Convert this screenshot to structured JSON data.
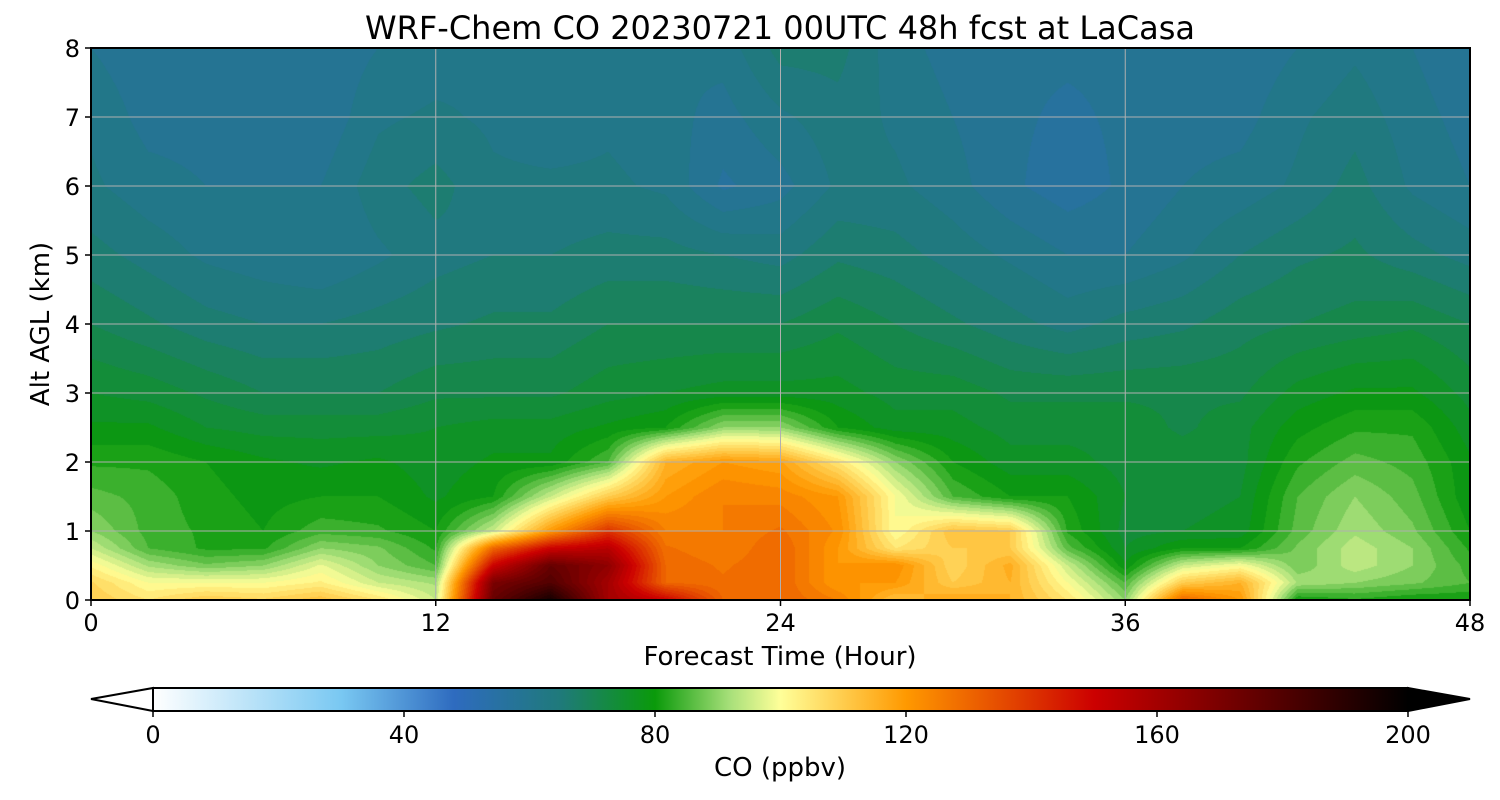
{
  "chart_data": {
    "type": "heatmap",
    "title": "WRF-Chem CO  20230721 00UTC 48h fcst at LaCasa",
    "xlabel": "Forecast Time (Hour)",
    "ylabel": "Alt AGL (km)",
    "xlim": [
      0,
      48
    ],
    "ylim": [
      0,
      8
    ],
    "xticks": [
      "0",
      "12",
      "24",
      "36",
      "48"
    ],
    "yticks": [
      "0",
      "1",
      "2",
      "3",
      "4",
      "5",
      "6",
      "7",
      "8"
    ],
    "grid": true,
    "colorbar": {
      "label": "CO  (ppbv)",
      "range": [
        0,
        200
      ],
      "ticks": [
        "0",
        "40",
        "80",
        "120",
        "160",
        "200"
      ],
      "extend": "both",
      "colors": [
        "#ffffff",
        "#79c8f2",
        "#2e6bbf",
        "#1f7a7a",
        "#0a9a0a",
        "#a8e07a",
        "#ffff99",
        "#ff9900",
        "#cc0000",
        "#000000"
      ],
      "color_positions": [
        0,
        30,
        48,
        65,
        80,
        92,
        100,
        120,
        150,
        200
      ]
    },
    "x": [
      0,
      2,
      4,
      6,
      8,
      10,
      12,
      14,
      16,
      18,
      20,
      22,
      24,
      26,
      28,
      30,
      32,
      34,
      36,
      38,
      40,
      42,
      44,
      46,
      48
    ],
    "y": [
      0,
      0.25,
      0.5,
      0.75,
      1,
      1.5,
      2,
      2.5,
      3,
      4,
      5,
      6,
      7,
      8
    ],
    "values": [
      [
        110,
        105,
        110,
        108,
        112,
        105,
        95,
        175,
        195,
        160,
        150,
        130,
        130,
        125,
        112,
        118,
        115,
        105,
        90,
        130,
        120,
        80,
        82,
        80,
        80
      ],
      [
        108,
        100,
        100,
        100,
        103,
        95,
        92,
        170,
        180,
        160,
        130,
        128,
        130,
        120,
        120,
        110,
        115,
        100,
        85,
        110,
        115,
        92,
        90,
        88,
        85
      ],
      [
        102,
        92,
        88,
        90,
        98,
        90,
        85,
        150,
        175,
        165,
        130,
        127,
        130,
        120,
        122,
        108,
        116,
        95,
        78,
        95,
        100,
        88,
        94,
        90,
        84
      ],
      [
        95,
        85,
        82,
        82,
        90,
        88,
        82,
        130,
        150,
        155,
        128,
        125,
        130,
        120,
        105,
        110,
        110,
        86,
        75,
        80,
        80,
        88,
        94,
        90,
        82
      ],
      [
        90,
        84,
        82,
        80,
        84,
        83,
        80,
        95,
        120,
        140,
        125,
        125,
        128,
        122,
        100,
        112,
        110,
        82,
        74,
        75,
        76,
        86,
        92,
        88,
        80
      ],
      [
        86,
        84,
        81,
        79,
        80,
        80,
        77,
        80,
        95,
        110,
        120,
        125,
        124,
        120,
        100,
        85,
        80,
        80,
        75,
        74,
        75,
        85,
        90,
        86,
        78
      ],
      [
        82,
        82,
        80,
        78,
        77,
        78,
        76,
        78,
        78,
        85,
        115,
        120,
        118,
        105,
        90,
        80,
        76,
        76,
        74,
        74,
        74,
        82,
        86,
        84,
        78
      ],
      [
        78,
        78,
        75,
        74,
        74,
        74,
        75,
        76,
        76,
        78,
        80,
        90,
        90,
        80,
        76,
        76,
        74,
        74,
        74,
        72,
        74,
        79,
        82,
        82,
        76
      ],
      [
        75,
        74,
        72,
        70,
        70,
        70,
        72,
        72,
        72,
        74,
        75,
        76,
        76,
        76,
        74,
        74,
        72,
        72,
        72,
        72,
        72,
        76,
        78,
        78,
        74
      ],
      [
        70,
        68,
        66,
        65,
        65,
        66,
        67,
        68,
        68,
        70,
        70,
        70,
        70,
        72,
        70,
        68,
        66,
        64,
        66,
        67,
        69,
        70,
        71,
        72,
        70
      ],
      [
        66,
        64,
        62,
        61,
        60,
        62,
        64,
        65,
        65,
        66,
        66,
        65,
        64,
        67,
        66,
        64,
        62,
        60,
        60,
        62,
        65,
        67,
        68,
        66,
        64
      ],
      [
        63,
        61,
        60,
        60,
        60,
        64,
        66,
        63,
        63,
        63,
        62,
        57,
        59,
        63,
        63,
        61,
        58,
        56,
        58,
        60,
        61,
        63,
        66,
        62,
        60
      ],
      [
        62,
        59,
        59,
        59,
        58,
        62,
        63,
        62,
        61,
        62,
        61,
        59,
        62,
        64,
        62,
        60,
        58,
        57,
        58,
        59,
        59,
        62,
        64,
        61,
        59
      ],
      [
        60,
        58,
        58,
        58,
        58,
        60,
        61,
        62,
        60,
        60,
        60,
        61,
        66,
        66,
        61,
        59,
        58,
        58,
        58,
        58,
        58,
        60,
        62,
        60,
        58
      ]
    ]
  }
}
